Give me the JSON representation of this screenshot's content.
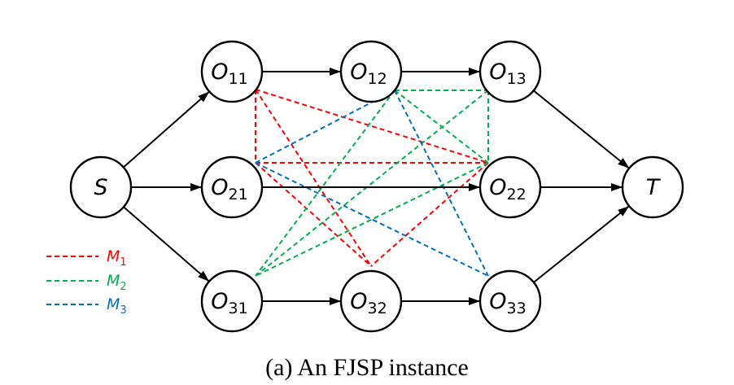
{
  "caption": "(a) An FJSP instance",
  "colors": {
    "M1": "#ff0000",
    "M2": "#00b050",
    "M3": "#0070c0",
    "edge": "#000000"
  },
  "nodes": [
    {
      "id": "S",
      "main": "S",
      "sub": ""
    },
    {
      "id": "O11",
      "main": "O",
      "sub": "11"
    },
    {
      "id": "O12",
      "main": "O",
      "sub": "12"
    },
    {
      "id": "O13",
      "main": "O",
      "sub": "13"
    },
    {
      "id": "O21",
      "main": "O",
      "sub": "21"
    },
    {
      "id": "O22",
      "main": "O",
      "sub": "22"
    },
    {
      "id": "O31",
      "main": "O",
      "sub": "31"
    },
    {
      "id": "O32",
      "main": "O",
      "sub": "32"
    },
    {
      "id": "O33",
      "main": "O",
      "sub": "33"
    },
    {
      "id": "T",
      "main": "T",
      "sub": ""
    }
  ],
  "directed_edges": [
    [
      "S",
      "O11"
    ],
    [
      "S",
      "O21"
    ],
    [
      "S",
      "O31"
    ],
    [
      "O11",
      "O12"
    ],
    [
      "O12",
      "O13"
    ],
    [
      "O21",
      "O22"
    ],
    [
      "O31",
      "O32"
    ],
    [
      "O32",
      "O33"
    ],
    [
      "O13",
      "T"
    ],
    [
      "O22",
      "T"
    ],
    [
      "O33",
      "T"
    ]
  ],
  "machine_edges": [
    {
      "machine": "M1",
      "from": "O11",
      "to": "O21"
    },
    {
      "machine": "M1",
      "from": "O11",
      "to": "O22"
    },
    {
      "machine": "M1",
      "from": "O11",
      "to": "O32"
    },
    {
      "machine": "M1",
      "from": "O21",
      "to": "O22"
    },
    {
      "machine": "M1",
      "from": "O21",
      "to": "O32"
    },
    {
      "machine": "M1",
      "from": "O22",
      "to": "O32"
    },
    {
      "machine": "M2",
      "from": "O12",
      "to": "O13"
    },
    {
      "machine": "M2",
      "from": "O12",
      "to": "O22"
    },
    {
      "machine": "M2",
      "from": "O12",
      "to": "O31"
    },
    {
      "machine": "M2",
      "from": "O13",
      "to": "O22"
    },
    {
      "machine": "M2",
      "from": "O13",
      "to": "O31"
    },
    {
      "machine": "M2",
      "from": "O22",
      "to": "O31"
    },
    {
      "machine": "M3",
      "from": "O21",
      "to": "O12"
    },
    {
      "machine": "M3",
      "from": "O21",
      "to": "O33"
    },
    {
      "machine": "M3",
      "from": "O12",
      "to": "O33"
    }
  ],
  "legend": [
    {
      "machine": "M1",
      "main": "M",
      "sub": "1"
    },
    {
      "machine": "M2",
      "main": "M",
      "sub": "2"
    },
    {
      "machine": "M3",
      "main": "M",
      "sub": "3"
    }
  ]
}
